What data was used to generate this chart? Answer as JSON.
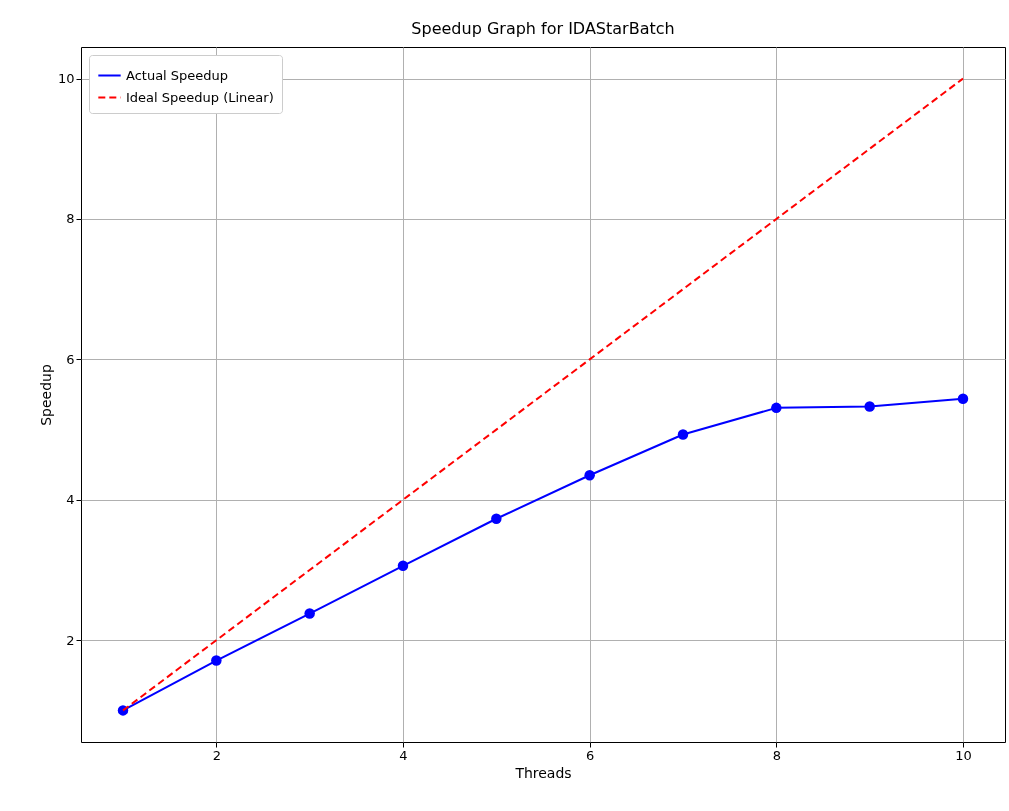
{
  "chart_data": {
    "type": "line",
    "title": "Speedup Graph for IDAStarBatch",
    "xlabel": "Threads",
    "ylabel": "Speedup",
    "x": [
      1,
      2,
      3,
      4,
      5,
      6,
      7,
      8,
      9,
      10
    ],
    "series": [
      {
        "name": "Actual Speedup",
        "color": "#0000ff",
        "marker": "circle",
        "line_style": "solid",
        "values": [
          1.0,
          1.71,
          2.38,
          3.06,
          3.73,
          4.35,
          4.93,
          5.31,
          5.33,
          5.44
        ]
      },
      {
        "name": "Ideal Speedup (Linear)",
        "color": "#ff0000",
        "line_style": "dashed",
        "values": [
          1,
          2,
          3,
          4,
          5,
          6,
          7,
          8,
          9,
          10
        ]
      }
    ],
    "xlim": [
      0.55,
      10.45
    ],
    "ylim": [
      0.55,
      10.45
    ],
    "xticks": [
      2,
      4,
      6,
      8,
      10
    ],
    "yticks": [
      2,
      4,
      6,
      8,
      10
    ],
    "grid": true,
    "legend": "top left"
  }
}
